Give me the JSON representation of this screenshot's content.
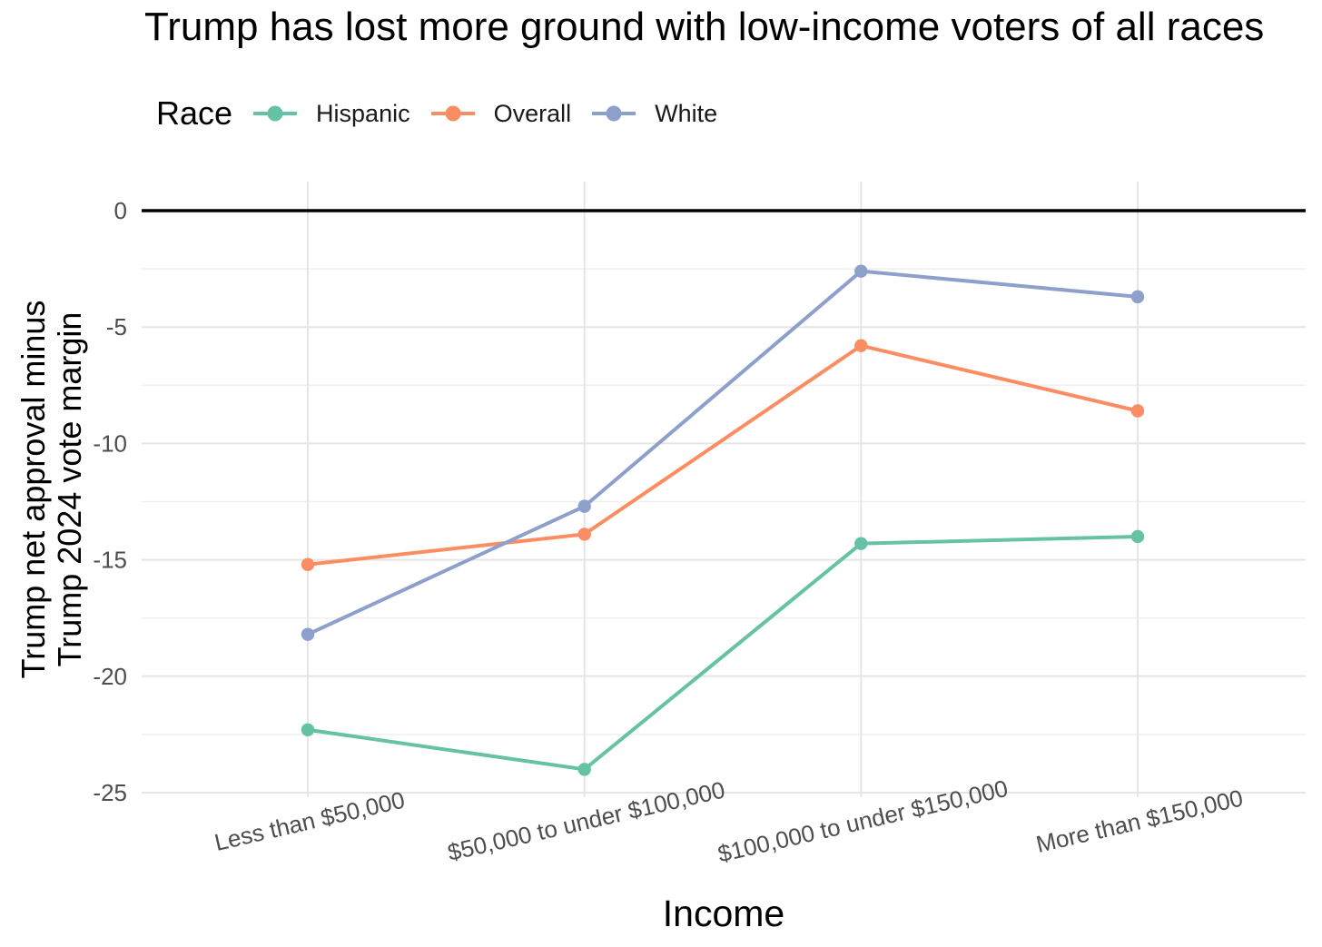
{
  "title": "Trump has lost more ground with low-income voters of all races",
  "legend": {
    "title": "Race",
    "items": [
      {
        "label": "Hispanic",
        "color": "#66C2A5"
      },
      {
        "label": "Overall",
        "color": "#FC8D62"
      },
      {
        "label": "White",
        "color": "#8DA0CB"
      }
    ]
  },
  "x_axis": {
    "title": "Income"
  },
  "y_axis": {
    "title_line1": "Trump net approval minus",
    "title_line2": "Trump 2024 vote margin"
  },
  "chart_data": {
    "type": "line",
    "title": "Trump has lost more ground with low-income voters of all races",
    "xlabel": "Income",
    "ylabel": "Trump net approval minus Trump 2024 vote margin",
    "categories": [
      "Less than $50,000",
      "$50,000 to under $100,000",
      "$100,000 to under $150,000",
      "More than $150,000"
    ],
    "series": [
      {
        "name": "Hispanic",
        "color": "#66C2A5",
        "values": [
          -22.3,
          -24.0,
          -14.3,
          -14.0
        ]
      },
      {
        "name": "Overall",
        "color": "#FC8D62",
        "values": [
          -15.2,
          -13.9,
          -5.8,
          -8.6
        ]
      },
      {
        "name": "White",
        "color": "#8DA0CB",
        "values": [
          -18.2,
          -12.7,
          -2.6,
          -3.7
        ]
      }
    ],
    "y_ticks": [
      0,
      -5,
      -10,
      -15,
      -20,
      -25
    ],
    "ylim": [
      -25.2,
      1.25
    ],
    "zero_line": true,
    "grid": true,
    "legend_position": "top",
    "colors": {
      "grid_major": "#E5E5E5",
      "grid_minor": "#F0F0F0",
      "zero_line": "#000000",
      "tick_label": "#4D4D4D"
    }
  }
}
